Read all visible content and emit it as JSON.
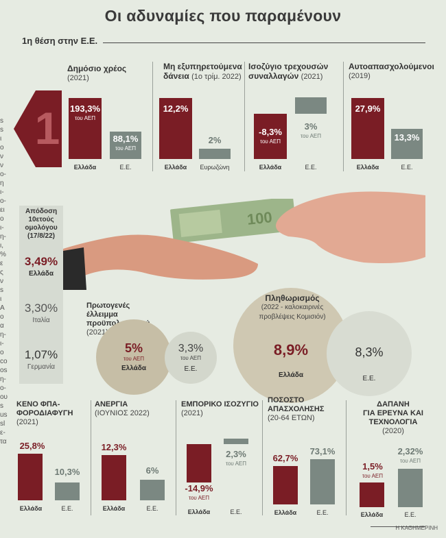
{
  "title": "Οι αδυναμίες που παραμένουν",
  "subtitle": "1η θέση στην Ε.Ε.",
  "big_number": "1",
  "left_strip": "s\ns\nι\nο\nν\nν\nο-\nη\nι-\nο-\nει\nο\nι-\nη-\nι,\n%\nε\nς\nν\ns\nι\nΑ\nο\nα\nη-\nι-\nο\nco\nos\nη-\nο-\nου\ns\nus\nsl\nε-\nτα",
  "top_panels": [
    {
      "title": "Δημόσιο χρέος",
      "period": "(2021)",
      "bars": [
        {
          "cat": "Ελλάδα",
          "label": "193,3%",
          "sub": "του ΑΕΠ"
        },
        {
          "cat": "Ε.Ε.",
          "label": "88,1%",
          "sub": "του ΑΕΠ"
        }
      ]
    },
    {
      "title": "Μη εξυπηρετούμενα",
      "title2": "δάνεια",
      "period": "(1ο τρίμ. 2022)",
      "bars": [
        {
          "cat": "Ελλάδα",
          "label": "12,2%",
          "sub": ""
        },
        {
          "cat": "Ευρωζώνη",
          "label": "2%",
          "sub": ""
        }
      ]
    },
    {
      "title": "Ισοζύγιο τρεχουσών",
      "title2": "συναλλαγών",
      "period": "(2021)",
      "bars": [
        {
          "cat": "Ελλάδα",
          "label": "-8,3%",
          "sub": "του ΑΕΠ"
        },
        {
          "cat": "Ε.Ε.",
          "label": "3%",
          "sub": "του ΑΕΠ"
        }
      ]
    },
    {
      "title": "Αυτοαπασχολούμενοι",
      "period": "(2019)",
      "bars": [
        {
          "cat": "Ελλάδα",
          "label": "27,9%",
          "sub": ""
        },
        {
          "cat": "Ε.Ε.",
          "label": "13,3%",
          "sub": ""
        }
      ]
    }
  ],
  "bond": {
    "title_lines": [
      "Απόδοση",
      "10ετούς",
      "ομολόγου",
      "(17/8/22)"
    ],
    "items": [
      {
        "value": "3,49%",
        "country": "Ελλάδα"
      },
      {
        "value": "3,30%",
        "country": "Ιταλία"
      },
      {
        "value": "1,07%",
        "country": "Γερμανία"
      }
    ]
  },
  "deficit": {
    "title_lines": [
      "Πρωτογενές",
      "έλλειμμα",
      "προϋπολογισμού"
    ],
    "period": "(2021)",
    "greece": {
      "value": "5%",
      "sub": "του ΑΕΠ",
      "country": "Ελλάδα"
    },
    "eu": {
      "value": "3,3%",
      "sub": "του ΑΕΠ",
      "country": "Ε.Ε."
    }
  },
  "inflation": {
    "title": "Πληθωρισμός",
    "sub_lines": [
      "(2022 - καλοκαιρινές",
      "προβλέψεις Κομισιόν)"
    ],
    "greece": {
      "value": "8,9%",
      "country": "Ελλάδα"
    },
    "eu": {
      "value": "8,3%",
      "country": "Ε.Ε."
    }
  },
  "bottom_panels": [
    {
      "title_lines": [
        "ΚΕΝΟ ΦΠΑ-",
        "ΦΟΡΟΔΙΑΦΥΓΗ"
      ],
      "period": "(2021)",
      "bars": [
        {
          "cat": "Ελλάδα",
          "label": "25,8%",
          "sub": ""
        },
        {
          "cat": "Ε.Ε.",
          "label": "10,3%",
          "sub": ""
        }
      ]
    },
    {
      "title_lines": [
        "ΑΝΕΡΓΙΑ"
      ],
      "period": "(ΙΟΥΝΙΟΣ 2022)",
      "bars": [
        {
          "cat": "Ελλάδα",
          "label": "12,3%",
          "sub": ""
        },
        {
          "cat": "Ε.Ε.",
          "label": "6%",
          "sub": ""
        }
      ]
    },
    {
      "title_lines": [
        "ΕΜΠΟΡΙΚΟ ΙΣΟΖΥΓΙΟ"
      ],
      "period": "(2021)",
      "bars": [
        {
          "cat": "Ελλάδα",
          "label": "-14,9%",
          "sub": "του ΑΕΠ"
        },
        {
          "cat": "Ε.Ε.",
          "label": "2,3%",
          "sub": "του ΑΕΠ"
        }
      ]
    },
    {
      "title_lines": [
        "ΠΟΣΟΣΤΟ",
        "ΑΠΑΣΧΟΛΗΣΗΣ"
      ],
      "period": "(20-64 ΕΤΩΝ)",
      "bars": [
        {
          "cat": "Ελλάδα",
          "label": "62,7%",
          "sub": ""
        },
        {
          "cat": "Ε.Ε.",
          "label": "73,1%",
          "sub": ""
        }
      ]
    },
    {
      "title_lines": [
        "ΔΑΠΑΝΗ",
        "ΓΙΑ ΕΡΕΥΝΑ ΚΑΙ",
        "ΤΕΧΝΟΛΟΓΙΑ"
      ],
      "period": "(2020)",
      "bars": [
        {
          "cat": "Ελλάδα",
          "label": "1,5%",
          "sub": "του ΑΕΠ"
        },
        {
          "cat": "Ε.Ε.",
          "label": "2,32%",
          "sub": "του ΑΕΠ"
        }
      ]
    }
  ],
  "source": "Η ΚΑΘΗΜΕΡΙΝΗ",
  "colors": {
    "greece": "#7a1d25",
    "eu": "#7b8882",
    "bubble": "#c9c4b0"
  },
  "chart_data": [
    {
      "type": "bar",
      "title": "Δημόσιο χρέος (2021)",
      "categories": [
        "Ελλάδα",
        "Ε.Ε."
      ],
      "values": [
        193.3,
        88.1
      ]
    },
    {
      "type": "bar",
      "title": "Μη εξυπηρετούμενα δάνεια (1ο τρίμ. 2022)",
      "categories": [
        "Ελλάδα",
        "Ευρωζώνη"
      ],
      "values": [
        12.2,
        2
      ]
    },
    {
      "type": "bar",
      "title": "Ισοζύγιο τρεχουσών συναλλαγών (2021)",
      "categories": [
        "Ελλάδα",
        "Ε.Ε."
      ],
      "values": [
        -8.3,
        3
      ]
    },
    {
      "type": "bar",
      "title": "Αυτοαπασχολούμενοι (2019)",
      "categories": [
        "Ελλάδα",
        "Ε.Ε."
      ],
      "values": [
        27.9,
        13.3
      ]
    },
    {
      "type": "table",
      "title": "Απόδοση 10ετούς ομολόγου (17/8/22)",
      "categories": [
        "Ελλάδα",
        "Ιταλία",
        "Γερμανία"
      ],
      "values": [
        3.49,
        3.3,
        1.07
      ]
    },
    {
      "type": "bubble",
      "title": "Πρωτογενές έλλειμμα προϋπολογισμού (2021)",
      "categories": [
        "Ελλάδα",
        "Ε.Ε."
      ],
      "values": [
        5,
        3.3
      ]
    },
    {
      "type": "bubble",
      "title": "Πληθωρισμός (2022 - καλοκαιρινές προβλέψεις Κομισιόν)",
      "categories": [
        "Ελλάδα",
        "Ε.Ε."
      ],
      "values": [
        8.9,
        8.3
      ]
    },
    {
      "type": "bar",
      "title": "ΚΕΝΟ ΦΠΑ-ΦΟΡΟΔΙΑΦΥΓΗ (2021)",
      "categories": [
        "Ελλάδα",
        "Ε.Ε."
      ],
      "values": [
        25.8,
        10.3
      ]
    },
    {
      "type": "bar",
      "title": "ΑΝΕΡΓΙΑ (ΙΟΥΝΙΟΣ 2022)",
      "categories": [
        "Ελλάδα",
        "Ε.Ε."
      ],
      "values": [
        12.3,
        6
      ]
    },
    {
      "type": "bar",
      "title": "ΕΜΠΟΡΙΚΟ ΙΣΟΖΥΓΙΟ (2021)",
      "categories": [
        "Ελλάδα",
        "Ε.Ε."
      ],
      "values": [
        -14.9,
        2.3
      ]
    },
    {
      "type": "bar",
      "title": "ΠΟΣΟΣΤΟ ΑΠΑΣΧΟΛΗΣΗΣ (20-64 ΕΤΩΝ)",
      "categories": [
        "Ελλάδα",
        "Ε.Ε."
      ],
      "values": [
        62.7,
        73.1
      ]
    },
    {
      "type": "bar",
      "title": "ΔΑΠΑΝΗ ΓΙΑ ΕΡΕΥΝΑ ΚΑΙ ΤΕΧΝΟΛΟΓΙΑ (2020)",
      "categories": [
        "Ελλάδα",
        "Ε.Ε."
      ],
      "values": [
        1.5,
        2.32
      ]
    }
  ]
}
